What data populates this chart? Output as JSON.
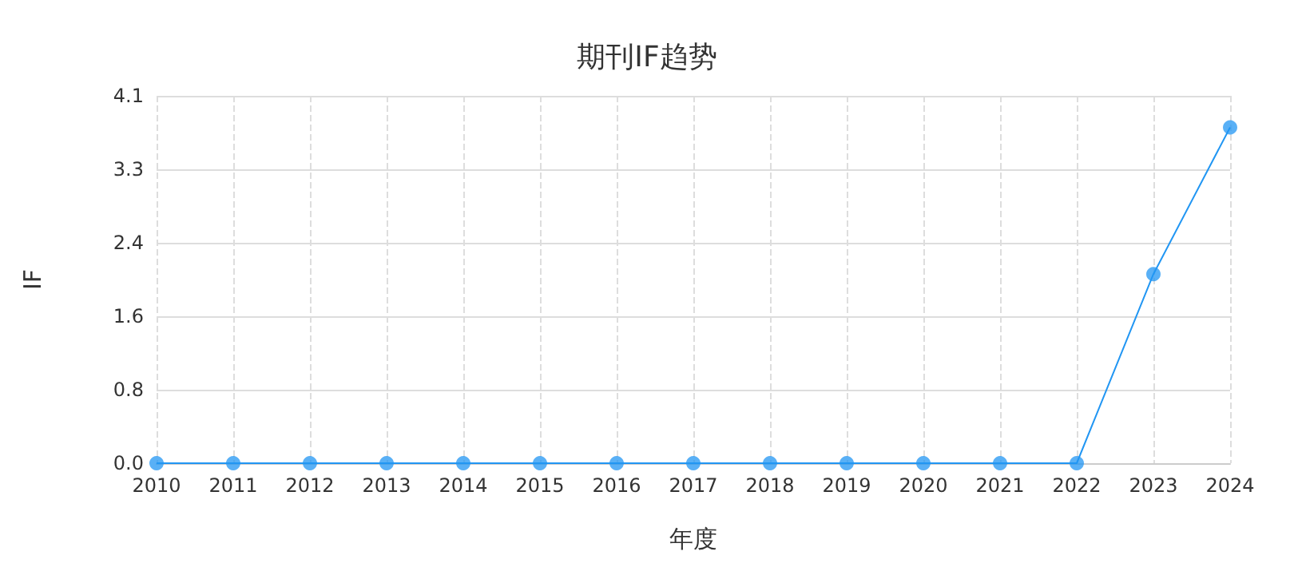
{
  "chart_data": {
    "type": "line",
    "title": "期刊IF趋势",
    "xlabel": "年度",
    "ylabel": "IF",
    "categories": [
      "2010",
      "2011",
      "2012",
      "2013",
      "2014",
      "2015",
      "2016",
      "2017",
      "2018",
      "2019",
      "2020",
      "2021",
      "2022",
      "2023",
      "2024"
    ],
    "series": [
      {
        "color": "#2196f3",
        "values": [
          0,
          0,
          0,
          0,
          0,
          0,
          0,
          0,
          0,
          0,
          0,
          0,
          0,
          2.1,
          3.73
        ]
      }
    ],
    "ylim": [
      0,
      4.08
    ],
    "yticks": [
      {
        "value": 0,
        "label": "0.0"
      },
      {
        "value": 0.816,
        "label": "0.8"
      },
      {
        "value": 1.632,
        "label": "1.6"
      },
      {
        "value": 2.448,
        "label": "2.4"
      },
      {
        "value": 3.264,
        "label": "3.3"
      },
      {
        "value": 4.08,
        "label": "4.1"
      }
    ],
    "grid": true,
    "marker": "circle",
    "line_style": "solid"
  }
}
